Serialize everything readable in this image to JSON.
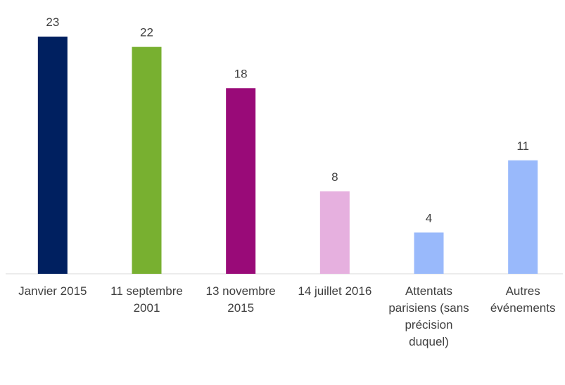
{
  "chart_data": {
    "type": "bar",
    "categories": [
      "Janvier 2015",
      "11 septembre 2001",
      "13 novembre 2015",
      "14 juillet 2016",
      "Attentats parisiens (sans précision duquel)",
      "Autres événements"
    ],
    "values": [
      23,
      22,
      18,
      8,
      4,
      11
    ],
    "colors": [
      "#002060",
      "#78b030",
      "#990a78",
      "#e6b0df",
      "#99b9fb",
      "#99b9fb"
    ]
  }
}
